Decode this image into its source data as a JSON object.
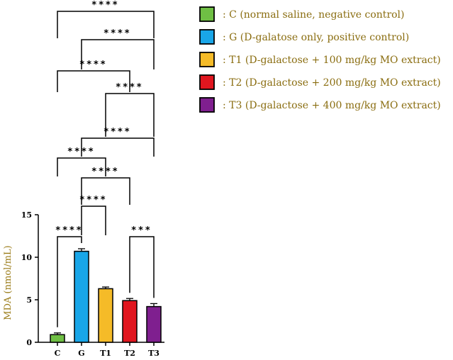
{
  "chart_data": {
    "type": "bar",
    "ylabel": "MDA (nmol/mL)",
    "ylim": [
      0,
      15
    ],
    "yticks": [
      "0",
      "5",
      "10",
      "15"
    ],
    "categories": [
      "C",
      "G",
      "T1",
      "T2",
      "T3"
    ],
    "values": [
      0.9,
      10.7,
      6.3,
      4.9,
      4.2
    ],
    "errors": [
      0.2,
      0.3,
      0.2,
      0.25,
      0.35
    ],
    "colors": [
      "#6fbf44",
      "#19a6e8",
      "#f5bb28",
      "#e0161f",
      "#7f1f8f"
    ],
    "legend": [
      {
        "color": "#6fbf44",
        "label": ": C (normal saline, negative control)"
      },
      {
        "color": "#19a6e8",
        "label": ": G (D-galatose only, positive control)"
      },
      {
        "color": "#f5bb28",
        "label": ": T1 (D-galactose + 100 mg/kg MO extract)"
      },
      {
        "color": "#e0161f",
        "label": ": T2 (D-galactose + 200 mg/kg MO extract)"
      },
      {
        "color": "#7f1f8f",
        "label": ": T3 (D-galactose + 400 mg/kg MO extract)"
      }
    ],
    "comparisons": [
      {
        "from": "C",
        "to": "G",
        "stars": "****"
      },
      {
        "from": "G",
        "to": "T1",
        "stars": "****"
      },
      {
        "from": "T2",
        "to": "T3",
        "stars": "***"
      },
      {
        "from": "G",
        "to": "T2",
        "stars": "****"
      },
      {
        "from": "C",
        "to": "T1",
        "stars": "****"
      },
      {
        "from": "G",
        "to": "T3",
        "stars": "****"
      },
      {
        "from": "T1",
        "to": "T3",
        "stars": "****"
      },
      {
        "from": "C",
        "to": "T2",
        "stars": "****"
      },
      {
        "from": "G",
        "to": "T3",
        "stars": "****"
      },
      {
        "from": "C",
        "to": "T3",
        "stars": "****"
      }
    ]
  }
}
